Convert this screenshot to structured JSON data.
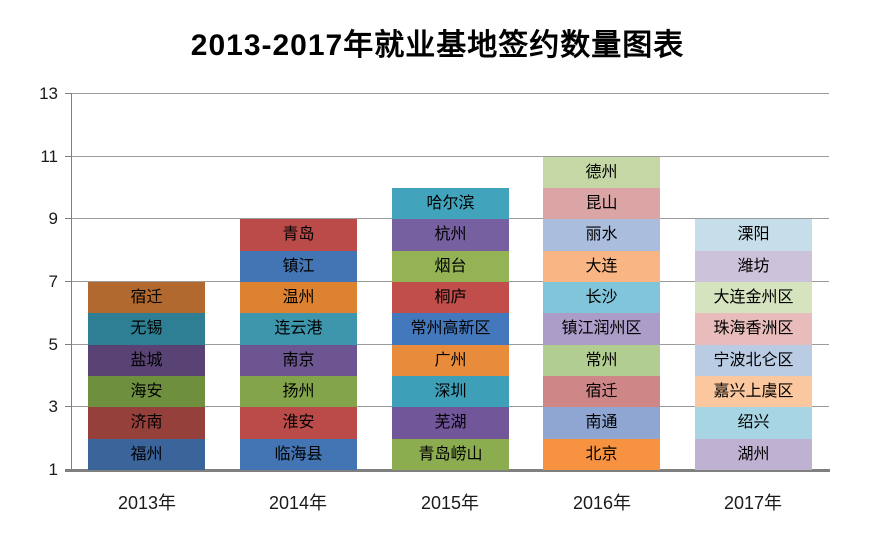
{
  "title": "2013-2017年就业基地签约数量图表",
  "colors": {
    "background": "#ffffff",
    "gridline": "#9B9B9B",
    "axis": "#7F7F7F",
    "title_text": "#000000",
    "label_text": "#000000"
  },
  "chart_data": {
    "type": "bar",
    "subtype": "stacked-column",
    "title": "2013-2017年就业基地签约数量图表",
    "xlabel": "",
    "ylabel": "",
    "legend": "none",
    "grid": true,
    "y_axis": {
      "min": 1,
      "max": 13,
      "ticks": [
        1,
        3,
        5,
        7,
        9,
        11,
        13
      ]
    },
    "baseline_value": 1,
    "value_per_segment": 1,
    "categories": [
      "2013年",
      "2014年",
      "2015年",
      "2016年",
      "2017年"
    ],
    "bar_top_values": [
      7,
      9,
      10,
      11,
      9
    ],
    "segment_counts": [
      6,
      8,
      9,
      10,
      8
    ],
    "bars": [
      {
        "category": "2013年",
        "segments_bottom_to_top": [
          {
            "label": "福州",
            "color": "#3A649A"
          },
          {
            "label": "济南",
            "color": "#96403C"
          },
          {
            "label": "海安",
            "color": "#6E8F3E"
          },
          {
            "label": "盐城",
            "color": "#584374"
          },
          {
            "label": "无锡",
            "color": "#2E7F93"
          },
          {
            "label": "宿迁",
            "color": "#B2692F"
          }
        ]
      },
      {
        "category": "2014年",
        "segments_bottom_to_top": [
          {
            "label": "临海县",
            "color": "#4374B4"
          },
          {
            "label": "淮安",
            "color": "#BA4B48"
          },
          {
            "label": "扬州",
            "color": "#84A44C"
          },
          {
            "label": "南京",
            "color": "#6C5591"
          },
          {
            "label": "连云港",
            "color": "#3D96AC"
          },
          {
            "label": "温州",
            "color": "#DD8230"
          },
          {
            "label": "镇江",
            "color": "#4374B4"
          },
          {
            "label": "青岛",
            "color": "#BA4B48"
          }
        ]
      },
      {
        "category": "2015年",
        "segments_bottom_to_top": [
          {
            "label": "青岛崂山",
            "color": "#8CAC50"
          },
          {
            "label": "芜湖",
            "color": "#71569A"
          },
          {
            "label": "深圳",
            "color": "#3E9FB8"
          },
          {
            "label": "广州",
            "color": "#E88C3C"
          },
          {
            "label": "常州高新区",
            "color": "#4478BC"
          },
          {
            "label": "桐庐",
            "color": "#C24E4B"
          },
          {
            "label": "烟台",
            "color": "#94B354"
          },
          {
            "label": "杭州",
            "color": "#7760A0"
          },
          {
            "label": "哈尔滨",
            "color": "#41A3BC"
          }
        ]
      },
      {
        "category": "2016年",
        "segments_bottom_to_top": [
          {
            "label": "北京",
            "color": "#F79240"
          },
          {
            "label": "南通",
            "color": "#8EA6D1"
          },
          {
            "label": "宿迁",
            "color": "#CE8687"
          },
          {
            "label": "常州",
            "color": "#B2CD91"
          },
          {
            "label": "镇江润州区",
            "color": "#AB9DC8"
          },
          {
            "label": "长沙",
            "color": "#81C5DA"
          },
          {
            "label": "大连",
            "color": "#F9B584"
          },
          {
            "label": "丽水",
            "color": "#ABBDDC"
          },
          {
            "label": "昆山",
            "color": "#DCA5A5"
          },
          {
            "label": "德州",
            "color": "#C4D7A4"
          }
        ]
      },
      {
        "category": "2017年",
        "segments_bottom_to_top": [
          {
            "label": "湖州",
            "color": "#BFB1D1"
          },
          {
            "label": "绍兴",
            "color": "#A7D5E3"
          },
          {
            "label": "嘉兴上虞区",
            "color": "#FBC79E"
          },
          {
            "label": "宁波北仑区",
            "color": "#B9CCE3"
          },
          {
            "label": "珠海香洲区",
            "color": "#E7BCBB"
          },
          {
            "label": "大连金州区",
            "color": "#D5E3BF"
          },
          {
            "label": "潍坊",
            "color": "#CCC2D9"
          },
          {
            "label": "溧阳",
            "color": "#C6DEE9"
          }
        ]
      }
    ]
  }
}
